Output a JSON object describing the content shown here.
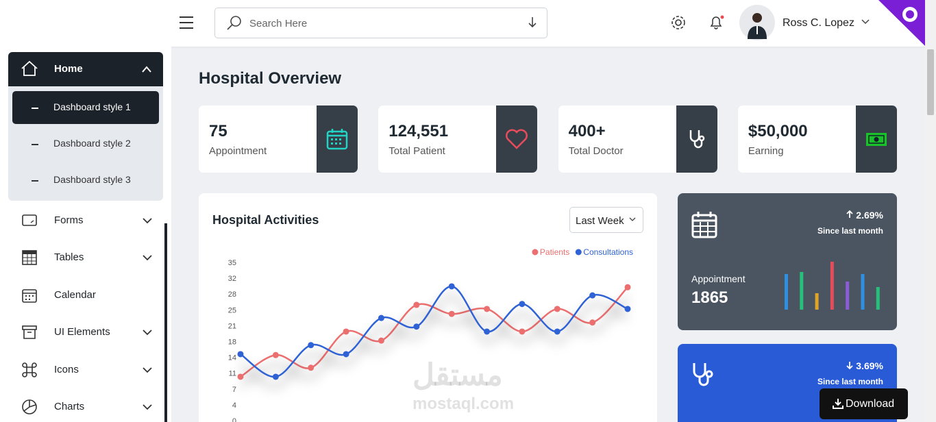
{
  "header": {
    "search_placeholder": "Search Here",
    "user_name": "Ross C. Lopez"
  },
  "sidebar": {
    "home": {
      "label": "Home",
      "submenu": [
        "Dashboard style 1",
        "Dashboard style 2",
        "Dashboard style 3"
      ]
    },
    "menu": [
      "Forms",
      "Tables",
      "Calendar",
      "UI Elements",
      "Icons",
      "Charts"
    ]
  },
  "page_title": "Hospital Overview",
  "stats": [
    {
      "value": "75",
      "label": "Appointment"
    },
    {
      "value": "124,551",
      "label": "Total Patient"
    },
    {
      "value": "400+",
      "label": "Total Doctor"
    },
    {
      "value": "$50,000",
      "label": "Earning"
    }
  ],
  "range_selector": "Last Week",
  "chart_data": {
    "type": "line",
    "title": "Hospital Activities",
    "categories": [
      null,
      null,
      null,
      null,
      null,
      null,
      null,
      null,
      null,
      null,
      null,
      null
    ],
    "series": [
      {
        "name": "Patients",
        "color": "#ec6f6f",
        "values": [
          9.7,
          14.5,
          11.7,
          19.7,
          17.7,
          25.6,
          23.6,
          24.7,
          19.7,
          24.7,
          21.7,
          29.5
        ]
      },
      {
        "name": "Consultations",
        "color": "#2f62d4",
        "values": [
          14.7,
          9.7,
          16.7,
          14.7,
          22.7,
          20.8,
          29.7,
          19.7,
          25.8,
          19.7,
          27.7,
          24.7
        ]
      }
    ],
    "ylim": [
      0,
      35
    ],
    "yticks": [
      0,
      {
        "value": 3.5,
        "label": "4"
      },
      7,
      {
        "value": 10.5,
        "label": "11"
      },
      14,
      {
        "value": 17.5,
        "label": "18"
      },
      21,
      {
        "value": 24.5,
        "label": "25"
      },
      28,
      {
        "value": 31.5,
        "label": "32"
      },
      35
    ]
  },
  "summary_cards": [
    {
      "change": "2.69%",
      "note": "Since last month",
      "label": "Appointment",
      "value": "1865",
      "mini_chart": {
        "type": "bar",
        "values": [
          52,
          55,
          24,
          70,
          41,
          52,
          33
        ],
        "colors": [
          "#2f8fe0",
          "#27c07a",
          "#e0a32a",
          "#e34d5b",
          "#8c5bd6",
          "#2f8fe0",
          "#27c07a"
        ]
      }
    },
    {
      "change": "3.69%",
      "note": "Since last month"
    }
  ],
  "watermark": {
    "arabic": "مستقل",
    "latin": "mostaql.com"
  },
  "download_button": "Download"
}
